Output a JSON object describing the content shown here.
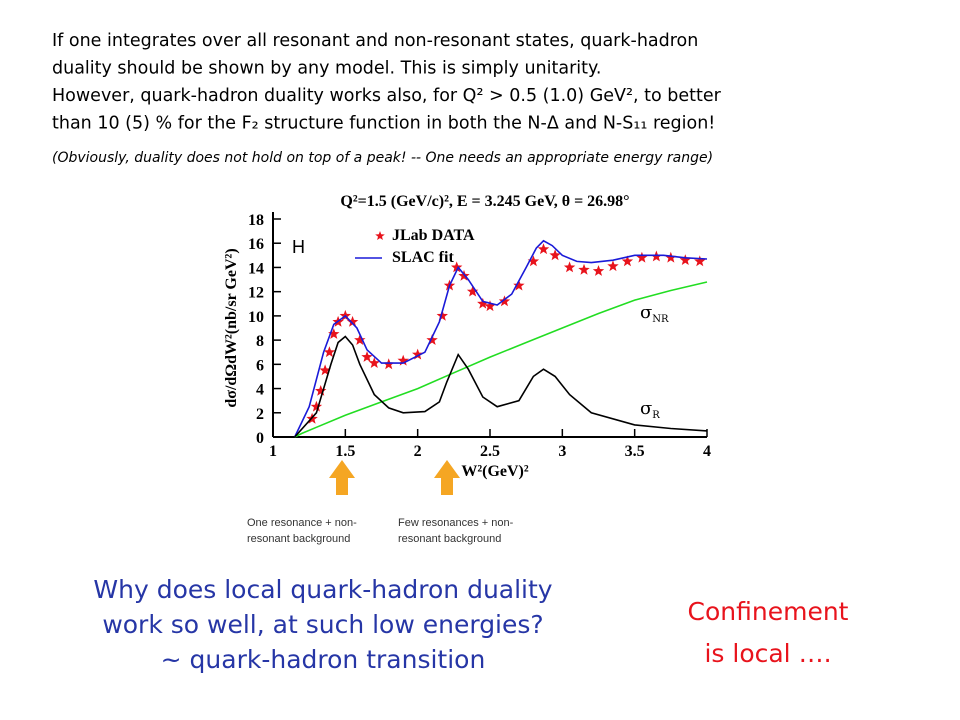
{
  "intro": {
    "lines": [
      "If one integrates over all resonant and non-resonant states, quark-hadron",
      "duality should be shown by any model. This is simply unitarity.",
      "However, quark-hadron duality works also, for Q² > 0.5 (1.0) GeV², to better",
      "than 10 (5) % for the F₂ structure function in both the N-Δ and N-S₁₁ region!"
    ],
    "note": "(Obviously, duality does not hold on top of a peak! -- One needs an appropriate energy range)"
  },
  "chart_data": {
    "type": "line",
    "title": "Q²=1.5 (GeV/c)², E = 3.245 GeV, θ = 26.98°",
    "x_label": "W²(GeV)²",
    "y_label": "dσ/dΩdW²(nb/sr GeV²)",
    "annotation": "H",
    "xlim": [
      1,
      4
    ],
    "xticks": [
      1,
      1.5,
      2,
      2.5,
      3,
      3.5,
      4
    ],
    "ylim": [
      0,
      18
    ],
    "yticks": [
      0,
      2,
      4,
      6,
      8,
      10,
      12,
      14,
      16,
      18
    ],
    "series": [
      {
        "name": "JLab DATA",
        "color": "#e8131c",
        "marker": "star",
        "x": [
          1.27,
          1.3,
          1.33,
          1.36,
          1.39,
          1.42,
          1.45,
          1.5,
          1.55,
          1.6,
          1.65,
          1.7,
          1.8,
          1.9,
          2.0,
          2.1,
          2.17,
          2.22,
          2.27,
          2.32,
          2.38,
          2.45,
          2.5,
          2.6,
          2.7,
          2.8,
          2.87,
          2.95,
          3.05,
          3.15,
          3.25,
          3.35,
          3.45,
          3.55,
          3.65,
          3.75,
          3.85,
          3.95
        ],
        "values": [
          1.5,
          2.5,
          3.8,
          5.5,
          7,
          8.5,
          9.5,
          10,
          9.5,
          8,
          6.6,
          6.1,
          6,
          6.3,
          6.8,
          8,
          10,
          12.5,
          14,
          13.3,
          12,
          11,
          10.8,
          11.2,
          12.5,
          14.5,
          15.5,
          15,
          14,
          13.8,
          13.7,
          14.1,
          14.5,
          14.8,
          14.9,
          14.8,
          14.6,
          14.5
        ]
      },
      {
        "name": "SLAC fit",
        "color": "#1a1ad8",
        "marker": "line",
        "x": [
          1.15,
          1.25,
          1.35,
          1.42,
          1.5,
          1.58,
          1.65,
          1.75,
          1.9,
          2.05,
          2.15,
          2.22,
          2.28,
          2.35,
          2.45,
          2.55,
          2.65,
          2.75,
          2.82,
          2.87,
          2.93,
          3.0,
          3.1,
          3.2,
          3.35,
          3.5,
          3.7,
          3.85,
          4.0
        ],
        "values": [
          0,
          2.5,
          7,
          9.3,
          10,
          9,
          7.2,
          6.1,
          6.1,
          7,
          9.5,
          12.5,
          14,
          13,
          11.2,
          10.9,
          11.8,
          14,
          15.6,
          16.2,
          15.8,
          15,
          14.5,
          14.4,
          14.6,
          15,
          15,
          14.8,
          14.7
        ]
      },
      {
        "name": "σNR",
        "color": "#22dd22",
        "marker": "line",
        "x": [
          1.15,
          1.2,
          1.3,
          1.5,
          1.75,
          2.0,
          2.25,
          2.5,
          2.75,
          3.0,
          3.25,
          3.5,
          3.75,
          4.0
        ],
        "values": [
          0,
          0.3,
          0.8,
          1.8,
          2.9,
          4,
          5.3,
          6.6,
          7.8,
          9,
          10.2,
          11.3,
          12.1,
          12.8
        ]
      },
      {
        "name": "σR",
        "color": "#000000",
        "marker": "line",
        "x": [
          1.15,
          1.3,
          1.4,
          1.45,
          1.5,
          1.55,
          1.6,
          1.7,
          1.8,
          1.9,
          2.05,
          2.15,
          2.2,
          2.28,
          2.35,
          2.45,
          2.55,
          2.7,
          2.8,
          2.87,
          2.95,
          3.05,
          3.2,
          3.5,
          3.75,
          4.0
        ],
        "values": [
          0,
          2,
          6,
          7.8,
          8.3,
          7.6,
          6,
          3.5,
          2.4,
          2,
          2.1,
          2.9,
          4.5,
          6.8,
          5.6,
          3.3,
          2.5,
          3,
          5,
          5.6,
          5,
          3.5,
          2,
          1,
          0.7,
          0.5
        ]
      }
    ]
  },
  "arrow_notes": [
    [
      "One resonance + non-",
      "resonant background"
    ],
    [
      "Few resonances + non-",
      "resonant background"
    ]
  ],
  "question": [
    "Why does local quark-hadron duality",
    "work so well, at such low energies?",
    "~ quark-hadron transition"
  ],
  "conclusion": [
    "Confinement",
    "is local …."
  ]
}
